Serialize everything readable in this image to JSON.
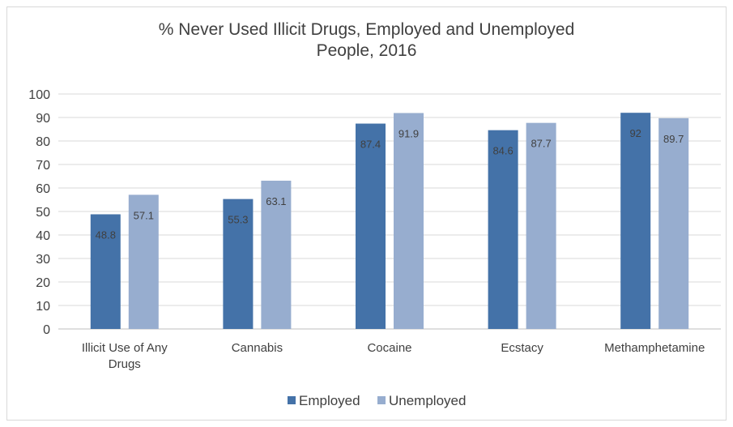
{
  "chart_data": {
    "type": "bar",
    "title_line1": "% Never Used Illicit Drugs, Employed and Unemployed",
    "title_line2": "People, 2016",
    "categories": [
      "Illicit Use of Any Drugs",
      "Cannabis",
      "Cocaine",
      "Ecstacy",
      "Methamphetamine"
    ],
    "category_lines": [
      [
        "Illicit Use of Any",
        "Drugs"
      ],
      [
        "Cannabis"
      ],
      [
        "Cocaine"
      ],
      [
        "Ecstacy"
      ],
      [
        "Methamphetamine"
      ]
    ],
    "series": [
      {
        "name": "Employed",
        "values": [
          48.8,
          55.3,
          87.4,
          84.6,
          92
        ],
        "color": "#4472a8"
      },
      {
        "name": "Unemployed",
        "values": [
          57.1,
          63.1,
          91.9,
          87.7,
          89.7
        ],
        "color": "#97adcf"
      }
    ],
    "ylim": [
      0,
      100
    ],
    "yticks": [
      0,
      10,
      20,
      30,
      40,
      50,
      60,
      70,
      80,
      90,
      100
    ],
    "grid": true,
    "legend_position": "bottom"
  }
}
